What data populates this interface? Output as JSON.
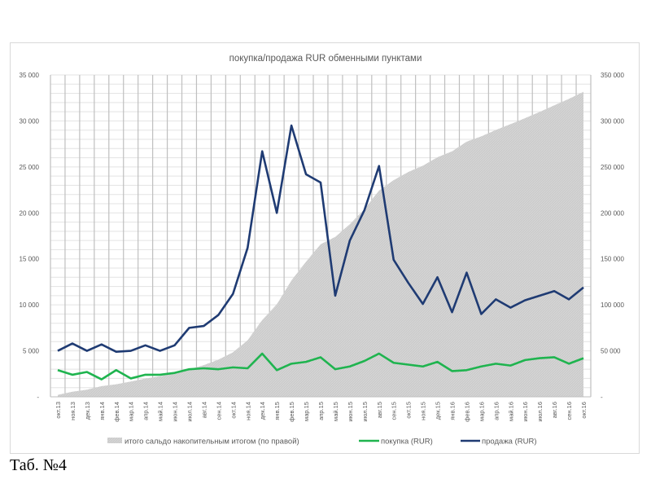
{
  "caption": "Таб. №4",
  "chart_data": {
    "type": "line",
    "title": "покупка/продажа RUR обменными пунктами",
    "categories": [
      "окт.13",
      "ноя.13",
      "дек.13",
      "янв.14",
      "фев.14",
      "мар.14",
      "апр.14",
      "май.14",
      "июн.14",
      "июл.14",
      "авг.14",
      "сен.14",
      "окт.14",
      "ноя.14",
      "дек.14",
      "янв.15",
      "фев.15",
      "мар.15",
      "апр.15",
      "май.15",
      "июн.15",
      "июл.15",
      "авг.15",
      "сен.15",
      "окт.15",
      "ноя.15",
      "дек.15",
      "янв.16",
      "фев.16",
      "мар.16",
      "апр.16",
      "май.16",
      "июн.16",
      "июл.16",
      "авг.16",
      "сен.16",
      "окт.16"
    ],
    "y_left": {
      "min": 0,
      "max": 35000,
      "ticks": [
        "-",
        "5 000",
        "10 000",
        "15 000",
        "20 000",
        "25 000",
        "30 000",
        "35 000"
      ]
    },
    "y_right": {
      "min": 0,
      "max": 350000,
      "ticks": [
        "-",
        "50 000",
        "100 000",
        "150 000",
        "200 000",
        "250 000",
        "300 000",
        "350 000"
      ]
    },
    "grid": true,
    "legend_position": "bottom",
    "series": [
      {
        "name": "итого сальдо накопительным итогом (по правой)",
        "type": "area",
        "axis": "right",
        "color": "#d0d0d0",
        "values": [
          2100,
          5500,
          7800,
          11600,
          13600,
          16600,
          19800,
          22400,
          25400,
          29900,
          34500,
          40400,
          48400,
          61500,
          83500,
          100600,
          126500,
          146900,
          165900,
          173900,
          187600,
          204000,
          224400,
          235600,
          244500,
          251300,
          260500,
          266900,
          277500,
          283200,
          290200,
          296500,
          303000,
          309800,
          317000,
          324000,
          331700
        ]
      },
      {
        "name": "покупка (RUR)",
        "type": "line",
        "axis": "left",
        "color": "#1fb44f",
        "values": [
          2900,
          2400,
          2700,
          1900,
          2900,
          2000,
          2400,
          2400,
          2600,
          3000,
          3100,
          3000,
          3200,
          3100,
          4700,
          2900,
          3600,
          3800,
          4300,
          3000,
          3300,
          3900,
          4700,
          3700,
          3500,
          3300,
          3800,
          2800,
          2900,
          3300,
          3600,
          3400,
          4000,
          4200,
          4300,
          3600,
          4200
        ]
      },
      {
        "name": "продажа (RUR)",
        "type": "line",
        "axis": "left",
        "color": "#1f3b73",
        "values": [
          5000,
          5800,
          5000,
          5700,
          4900,
          5000,
          5600,
          5000,
          5600,
          7500,
          7700,
          8900,
          11200,
          16200,
          26700,
          20000,
          29500,
          24200,
          23300,
          11000,
          17000,
          20300,
          25100,
          14900,
          12400,
          10100,
          13000,
          9200,
          13500,
          9000,
          10600,
          9700,
          10500,
          11000,
          11500,
          10600,
          11900
        ]
      }
    ]
  }
}
